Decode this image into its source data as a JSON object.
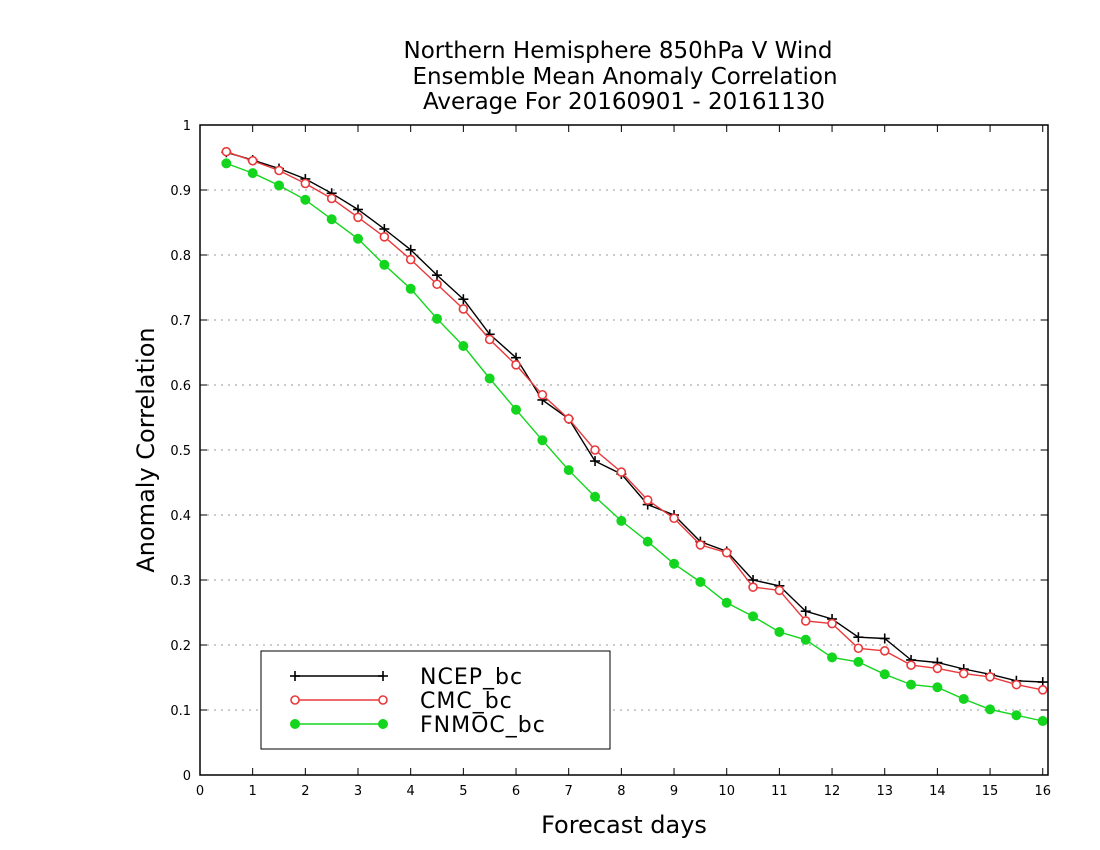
{
  "chart_data": {
    "type": "line",
    "title_lines": [
      "Northern Hemisphere 850hPa V Wind",
      "Ensemble Mean Anomaly Correlation",
      "Average For 20160901 - 20161130"
    ],
    "xlabel": "Forecast days",
    "ylabel": "Anomaly Correlation",
    "xlim": [
      0,
      16.1
    ],
    "ylim": [
      0,
      1
    ],
    "x_ticks": [
      0,
      1,
      2,
      3,
      4,
      5,
      6,
      7,
      8,
      9,
      10,
      11,
      12,
      13,
      14,
      15,
      16
    ],
    "y_ticks": [
      0,
      0.1,
      0.2,
      0.3,
      0.4,
      0.5,
      0.6,
      0.7,
      0.8,
      0.9,
      1
    ],
    "y_tick_labels": [
      "0",
      "0.1",
      "0.2",
      "0.3",
      "0.4",
      "0.5",
      "0.6",
      "0.7",
      "0.8",
      "0.9",
      "1"
    ],
    "grid": "horizontal-dotted",
    "legend_position": "bottom-left",
    "x": [
      0.5,
      1,
      1.5,
      2,
      2.5,
      3,
      3.5,
      4,
      4.5,
      5,
      5.5,
      6,
      6.5,
      7,
      7.5,
      8,
      8.5,
      9,
      9.5,
      10,
      10.5,
      11,
      11.5,
      12,
      12.5,
      13,
      13.5,
      14,
      14.5,
      15,
      15.5,
      16
    ],
    "series": [
      {
        "name": "NCEP_bc",
        "color": "#000000",
        "marker": "plus",
        "values": [
          0.958,
          0.946,
          0.933,
          0.917,
          0.895,
          0.87,
          0.84,
          0.808,
          0.769,
          0.732,
          0.678,
          0.642,
          0.577,
          0.548,
          0.483,
          0.463,
          0.416,
          0.4,
          0.359,
          0.344,
          0.3,
          0.291,
          0.252,
          0.24,
          0.212,
          0.21,
          0.177,
          0.173,
          0.163,
          0.155,
          0.145,
          0.143
        ]
      },
      {
        "name": "CMC_bc",
        "color": "#e8393b",
        "marker": "open-circle",
        "values": [
          0.959,
          0.945,
          0.93,
          0.91,
          0.887,
          0.858,
          0.828,
          0.793,
          0.755,
          0.717,
          0.67,
          0.631,
          0.585,
          0.548,
          0.5,
          0.466,
          0.423,
          0.395,
          0.354,
          0.342,
          0.289,
          0.284,
          0.237,
          0.233,
          0.195,
          0.191,
          0.169,
          0.164,
          0.156,
          0.151,
          0.139,
          0.131
        ]
      },
      {
        "name": "FNMOC_bc",
        "color": "#14d51e",
        "marker": "filled-circle",
        "values": [
          0.941,
          0.926,
          0.907,
          0.885,
          0.855,
          0.825,
          0.785,
          0.748,
          0.702,
          0.66,
          0.61,
          0.562,
          0.515,
          0.469,
          0.428,
          0.391,
          0.359,
          0.325,
          0.297,
          0.265,
          0.244,
          0.22,
          0.208,
          0.181,
          0.174,
          0.155,
          0.139,
          0.135,
          0.117,
          0.101,
          0.092,
          0.083
        ]
      }
    ]
  }
}
